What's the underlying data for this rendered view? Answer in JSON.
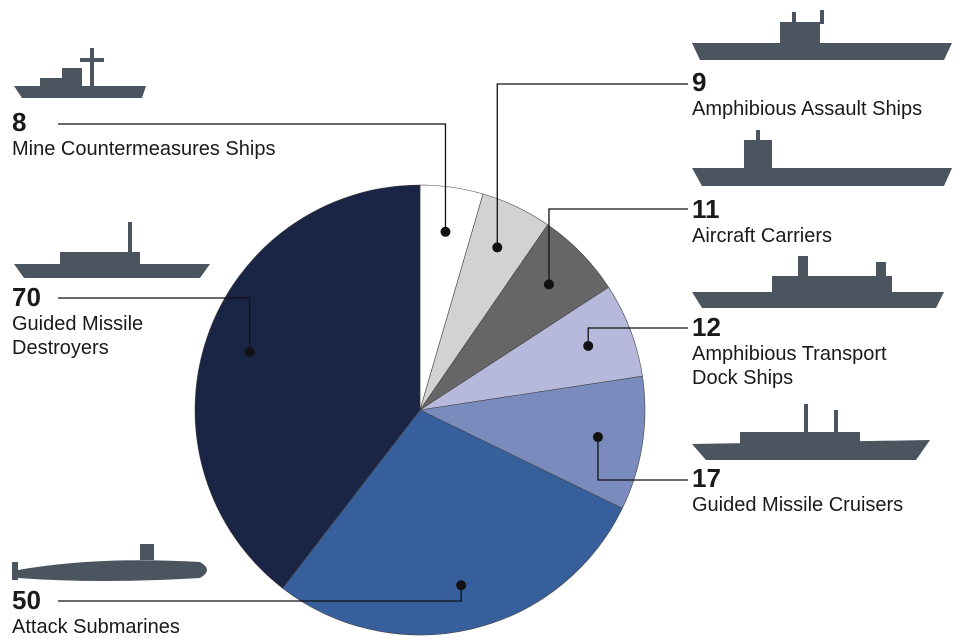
{
  "chart_data": {
    "type": "pie",
    "categories": [
      "Mine Countermeasures Ships",
      "Amphibious Assault Ships",
      "Aircraft Carriers",
      "Amphibious Transport Dock Ships",
      "Guided Missile Cruisers",
      "Attack Submarines",
      "Guided Missile Destroyers"
    ],
    "values": [
      8,
      9,
      11,
      12,
      17,
      50,
      70
    ],
    "colors": [
      "#ffffff",
      "#d2d2d2",
      "#666666",
      "#b6b9dc",
      "#7a8bbd",
      "#365f9c",
      "#1a2545"
    ]
  }
}
